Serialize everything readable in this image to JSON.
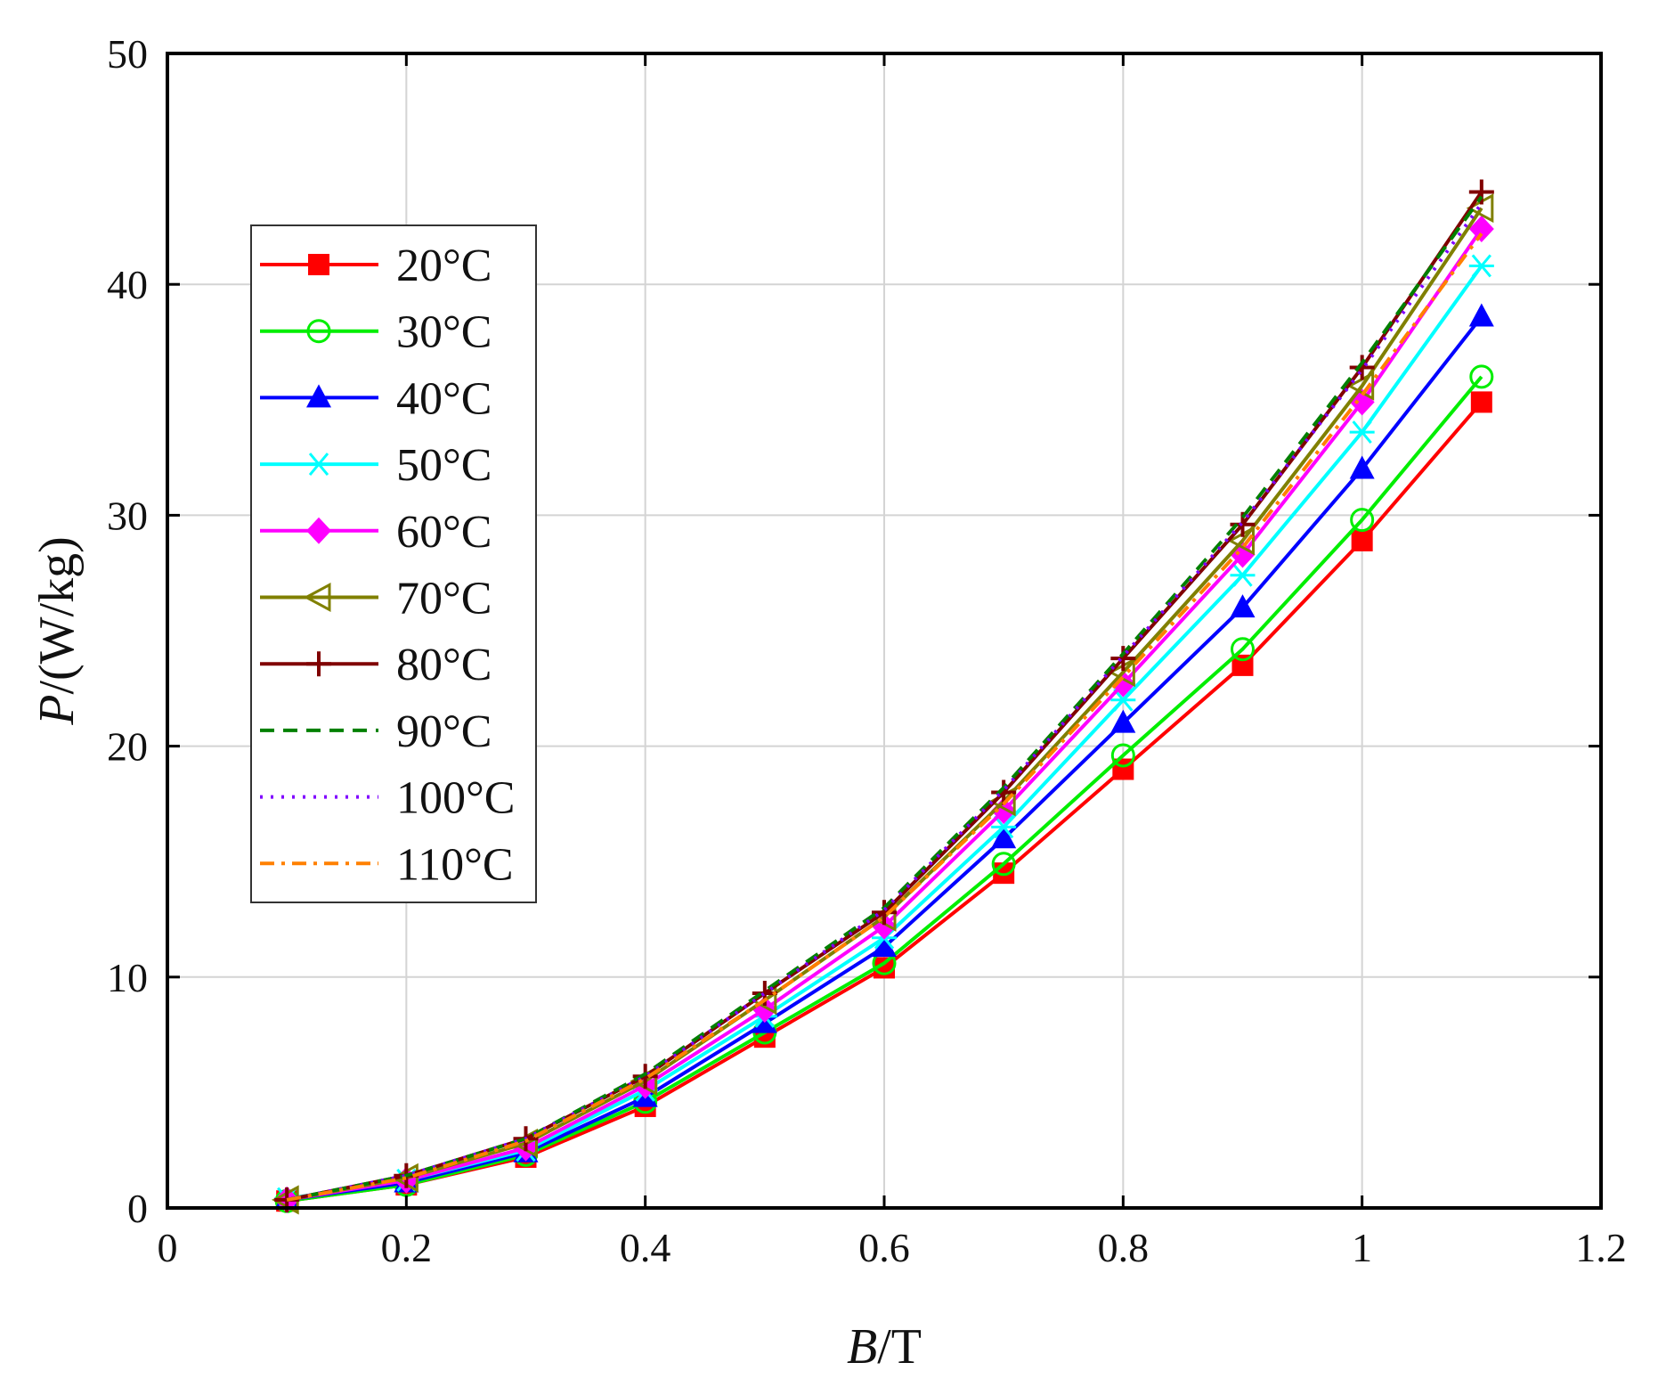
{
  "chart_data": {
    "type": "line",
    "title": "",
    "xlabel_italic": "B",
    "xlabel_unit": "/T",
    "ylabel_italic": "P",
    "ylabel_unit": "/(W/kg)",
    "xlim": [
      0,
      1.2
    ],
    "ylim": [
      0,
      50
    ],
    "xticks": [
      0,
      0.2,
      0.4,
      0.6,
      0.8,
      1,
      1.2
    ],
    "xtick_labels": [
      "0",
      "0.2",
      "0.4",
      "0.6",
      "0.8",
      "1",
      "1.2"
    ],
    "yticks": [
      0,
      10,
      20,
      30,
      40,
      50
    ],
    "ytick_labels": [
      "0",
      "10",
      "20",
      "30",
      "40",
      "50"
    ],
    "grid": true,
    "legend_position": "upper-left",
    "x": [
      0.1,
      0.2,
      0.3,
      0.4,
      0.5,
      0.6,
      0.7,
      0.8,
      0.9,
      1.0,
      1.1
    ],
    "series": [
      {
        "name": "20°C",
        "color": "#ff0000",
        "marker": "square-filled",
        "dash": "solid",
        "values": [
          0.3,
          1.0,
          2.2,
          4.4,
          7.4,
          10.4,
          14.5,
          19.0,
          23.5,
          28.9,
          34.9
        ]
      },
      {
        "name": "30°C",
        "color": "#00ee00",
        "marker": "circle-open",
        "dash": "solid",
        "values": [
          0.3,
          1.0,
          2.3,
          4.6,
          7.6,
          10.6,
          14.9,
          19.6,
          24.2,
          29.8,
          36.0
        ]
      },
      {
        "name": "40°C",
        "color": "#0000ff",
        "marker": "triangle-up-filled",
        "dash": "solid",
        "values": [
          0.35,
          1.1,
          2.4,
          4.8,
          8.0,
          11.3,
          16.0,
          21.0,
          26.0,
          32.0,
          38.6
        ]
      },
      {
        "name": "50°C",
        "color": "#00ffff",
        "marker": "asterisk",
        "dash": "solid",
        "values": [
          0.4,
          1.2,
          2.5,
          5.1,
          8.3,
          11.7,
          16.5,
          22.0,
          27.4,
          33.6,
          40.8
        ]
      },
      {
        "name": "60°C",
        "color": "#ff00ff",
        "marker": "diamond-filled",
        "dash": "solid",
        "values": [
          0.35,
          1.2,
          2.6,
          5.3,
          8.6,
          12.2,
          17.2,
          22.7,
          28.3,
          34.9,
          42.4
        ]
      },
      {
        "name": "70°C",
        "color": "#808000",
        "marker": "triangle-left-open",
        "dash": "solid",
        "values": [
          0.35,
          1.3,
          2.8,
          5.5,
          9.0,
          12.6,
          17.6,
          23.2,
          28.9,
          35.6,
          43.3
        ]
      },
      {
        "name": "80°C",
        "color": "#800000",
        "marker": "plus",
        "dash": "solid",
        "values": [
          0.35,
          1.4,
          3.0,
          5.7,
          9.3,
          12.8,
          18.0,
          23.8,
          29.6,
          36.4,
          44.0
        ]
      },
      {
        "name": "90°C",
        "color": "#008000",
        "marker": "none",
        "dash": "dashed",
        "values": [
          0.35,
          1.4,
          3.0,
          5.8,
          9.4,
          13.0,
          18.2,
          24.0,
          29.9,
          36.6,
          43.8
        ]
      },
      {
        "name": "100°C",
        "color": "#8000ff",
        "marker": "none",
        "dash": "dotted",
        "values": [
          0.35,
          1.4,
          3.0,
          5.7,
          9.3,
          12.9,
          18.1,
          23.9,
          29.7,
          36.3,
          43.5
        ]
      },
      {
        "name": "110°C",
        "color": "#ff8000",
        "marker": "none",
        "dash": "dashdot",
        "values": [
          0.35,
          1.3,
          2.9,
          5.6,
          9.0,
          12.6,
          17.5,
          23.0,
          28.6,
          35.2,
          42.2
        ]
      }
    ]
  }
}
